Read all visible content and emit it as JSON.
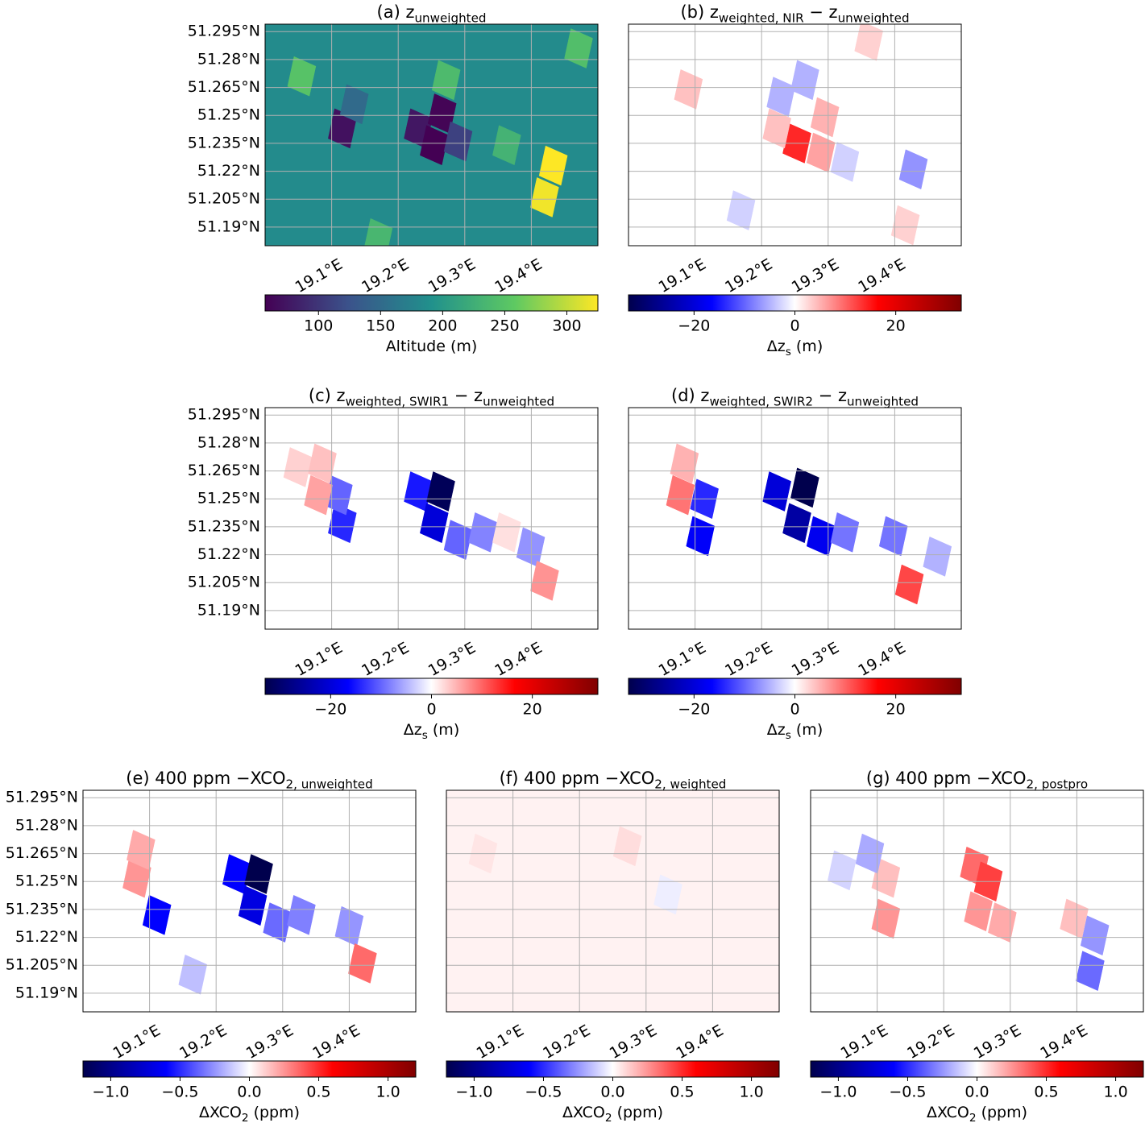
{
  "chart_data": [
    {
      "type": "heatmap",
      "title": [
        "(a) z",
        {
          "sub": "unweighted"
        }
      ],
      "colormap": "viridis",
      "clim": [
        57,
        325
      ],
      "cticks": [
        100,
        150,
        200,
        250,
        300
      ],
      "colorbar_label": [
        "Altitude (m)"
      ],
      "xlim": [
        19.0,
        19.5
      ],
      "ylim": [
        51.18,
        51.299
      ],
      "grid": true,
      "xticks": [
        {
          "value": 19.1,
          "label": "19.1°E"
        },
        {
          "value": 19.2,
          "label": "19.2°E"
        },
        {
          "value": 19.3,
          "label": "19.3°E"
        },
        {
          "value": 19.4,
          "label": "19.4°E"
        }
      ],
      "yticks": [
        {
          "value": 51.19,
          "label": "51.19°N"
        },
        {
          "value": 51.205,
          "label": "51.205°N"
        },
        {
          "value": 51.22,
          "label": "51.22°N"
        },
        {
          "value": 51.235,
          "label": "51.235°N"
        },
        {
          "value": 51.25,
          "label": "51.25°N"
        },
        {
          "value": 51.265,
          "label": "51.265°N"
        },
        {
          "value": 51.28,
          "label": "51.28°N"
        },
        {
          "value": 51.295,
          "label": "51.295°N"
        }
      ],
      "background": 185,
      "cells": [
        {
          "lon": 19.116,
          "lat": 51.243,
          "value": 70
        },
        {
          "lon": 19.23,
          "lat": 51.243,
          "value": 75
        },
        {
          "lon": 19.266,
          "lat": 51.251,
          "value": 60
        },
        {
          "lon": 19.254,
          "lat": 51.234,
          "value": 55
        },
        {
          "lon": 19.29,
          "lat": 51.236,
          "value": 110
        },
        {
          "lon": 19.055,
          "lat": 51.271,
          "value": 250
        },
        {
          "lon": 19.433,
          "lat": 51.223,
          "value": 325
        },
        {
          "lon": 19.42,
          "lat": 51.206,
          "value": 320
        },
        {
          "lon": 19.272,
          "lat": 51.269,
          "value": 240
        },
        {
          "lon": 19.471,
          "lat": 51.286,
          "value": 245
        },
        {
          "lon": 19.17,
          "lat": 51.184,
          "value": 235
        },
        {
          "lon": 19.134,
          "lat": 51.256,
          "value": 150
        },
        {
          "lon": 19.363,
          "lat": 51.234,
          "value": 230
        }
      ]
    },
    {
      "type": "heatmap",
      "title": [
        "(b) z",
        {
          "sub": "weighted, NIR"
        },
        " − z",
        {
          "sub": "unweighted"
        }
      ],
      "colormap": "seismic",
      "clim": [
        -33,
        33
      ],
      "cticks": [
        {
          "value": -20,
          "label": "−20"
        },
        0,
        20
      ],
      "colorbar_label": [
        "Δz",
        {
          "sub": "s"
        },
        "  (m)"
      ],
      "xlim": [
        19.0,
        19.5
      ],
      "ylim": [
        51.18,
        51.299
      ],
      "grid": true,
      "xticks": [
        {
          "value": 19.1,
          "label": "19.1°E"
        },
        {
          "value": 19.2,
          "label": "19.2°E"
        },
        {
          "value": 19.3,
          "label": "19.3°E"
        },
        {
          "value": 19.4,
          "label": "19.4°E"
        }
      ],
      "yticks": [
        51.19,
        51.205,
        51.22,
        51.235,
        51.25,
        51.265,
        51.28,
        51.295
      ],
      "background": 0,
      "cells": [
        {
          "lon": 19.253,
          "lat": 51.235,
          "value": 14
        },
        {
          "lon": 19.289,
          "lat": 51.23,
          "value": 6
        },
        {
          "lon": 19.295,
          "lat": 51.249,
          "value": 5
        },
        {
          "lon": 19.223,
          "lat": 51.243,
          "value": 4
        },
        {
          "lon": 19.09,
          "lat": 51.264,
          "value": 4
        },
        {
          "lon": 19.229,
          "lat": 51.26,
          "value": -5
        },
        {
          "lon": 19.265,
          "lat": 51.269,
          "value": -5
        },
        {
          "lon": 19.428,
          "lat": 51.221,
          "value": -7
        },
        {
          "lon": 19.325,
          "lat": 51.225,
          "value": -3
        },
        {
          "lon": 19.169,
          "lat": 51.199,
          "value": -3
        },
        {
          "lon": 19.361,
          "lat": 51.29,
          "value": 3
        },
        {
          "lon": 19.416,
          "lat": 51.191,
          "value": 3
        }
      ]
    },
    {
      "type": "heatmap",
      "title": [
        "(c) z",
        {
          "sub": "weighted, SWIR1"
        },
        " − z",
        {
          "sub": "unweighted"
        }
      ],
      "colormap": "seismic",
      "clim": [
        -33,
        33
      ],
      "cticks": [
        {
          "value": -20,
          "label": "−20"
        },
        0,
        20
      ],
      "colorbar_label": [
        "Δz",
        {
          "sub": "s"
        },
        " (m)"
      ],
      "xlim": [
        19.0,
        19.5
      ],
      "ylim": [
        51.18,
        51.299
      ],
      "grid": true,
      "xticks": [
        {
          "value": 19.1,
          "label": "19.1°E"
        },
        {
          "value": 19.2,
          "label": "19.2°E"
        },
        {
          "value": 19.3,
          "label": "19.3°E"
        },
        {
          "value": 19.4,
          "label": "19.4°E"
        }
      ],
      "yticks": [
        {
          "value": 51.19,
          "label": "51.19°N"
        },
        {
          "value": 51.205,
          "label": "51.205°N"
        },
        {
          "value": 51.22,
          "label": "51.22°N"
        },
        {
          "value": 51.235,
          "label": "51.235°N"
        },
        {
          "value": 51.25,
          "label": "51.25°N"
        },
        {
          "value": 51.265,
          "label": "51.265°N"
        },
        {
          "value": 51.28,
          "label": "51.28°N"
        },
        {
          "value": 51.295,
          "label": "51.295°N"
        }
      ],
      "background": 0,
      "cells": [
        {
          "lon": 19.23,
          "lat": 51.254,
          "value": -15
        },
        {
          "lon": 19.264,
          "lat": 51.254,
          "value": -32
        },
        {
          "lon": 19.254,
          "lat": 51.237,
          "value": -20
        },
        {
          "lon": 19.116,
          "lat": 51.237,
          "value": -14
        },
        {
          "lon": 19.11,
          "lat": 51.252,
          "value": -10
        },
        {
          "lon": 19.08,
          "lat": 51.252,
          "value": 6
        },
        {
          "lon": 19.049,
          "lat": 51.267,
          "value": 3
        },
        {
          "lon": 19.086,
          "lat": 51.269,
          "value": 4
        },
        {
          "lon": 19.29,
          "lat": 51.228,
          "value": -10
        },
        {
          "lon": 19.327,
          "lat": 51.232,
          "value": -8
        },
        {
          "lon": 19.399,
          "lat": 51.224,
          "value": -7
        },
        {
          "lon": 19.42,
          "lat": 51.206,
          "value": 7
        },
        {
          "lon": 19.363,
          "lat": 51.232,
          "value": 2
        }
      ]
    },
    {
      "type": "heatmap",
      "title": [
        "(d) z",
        {
          "sub": "weighted, SWIR2"
        },
        " − z",
        {
          "sub": "unweighted"
        }
      ],
      "colormap": "seismic",
      "clim": [
        -33,
        33
      ],
      "cticks": [
        {
          "value": -20,
          "label": "−20"
        },
        0,
        20
      ],
      "colorbar_label": [
        "Δz",
        {
          "sub": "s"
        },
        " (m)"
      ],
      "xlim": [
        19.0,
        19.5
      ],
      "ylim": [
        51.18,
        51.299
      ],
      "grid": true,
      "xticks": [
        {
          "value": 19.1,
          "label": "19.1°E"
        },
        {
          "value": 19.2,
          "label": "19.2°E"
        },
        {
          "value": 19.3,
          "label": "19.3°E"
        },
        {
          "value": 19.4,
          "label": "19.4°E"
        }
      ],
      "yticks": [
        51.19,
        51.205,
        51.22,
        51.235,
        51.25,
        51.265,
        51.28,
        51.295
      ],
      "background": 0,
      "cells": [
        {
          "lon": 19.223,
          "lat": 51.254,
          "value": -20
        },
        {
          "lon": 19.265,
          "lat": 51.256,
          "value": -33
        },
        {
          "lon": 19.253,
          "lat": 51.237,
          "value": -25
        },
        {
          "lon": 19.289,
          "lat": 51.23,
          "value": -18
        },
        {
          "lon": 19.325,
          "lat": 51.232,
          "value": -9
        },
        {
          "lon": 19.114,
          "lat": 51.25,
          "value": -14
        },
        {
          "lon": 19.108,
          "lat": 51.23,
          "value": -17
        },
        {
          "lon": 19.078,
          "lat": 51.252,
          "value": 9
        },
        {
          "lon": 19.084,
          "lat": 51.269,
          "value": 5
        },
        {
          "lon": 19.398,
          "lat": 51.23,
          "value": -9
        },
        {
          "lon": 19.422,
          "lat": 51.204,
          "value": 12
        },
        {
          "lon": 19.464,
          "lat": 51.219,
          "value": -5
        }
      ]
    },
    {
      "type": "heatmap",
      "title": [
        "(e) 400 ppm −XCO",
        {
          "sub": "2, unweighted"
        }
      ],
      "colormap": "seismic",
      "clim": [
        -1.2,
        1.2
      ],
      "cticks": [
        {
          "value": -1,
          "label": "−1.0"
        },
        {
          "value": -0.5,
          "label": "−0.5"
        },
        {
          "value": 0,
          "label": "0.0"
        },
        0.5,
        {
          "value": 1,
          "label": "1.0"
        }
      ],
      "colorbar_label": [
        "ΔXCO",
        {
          "sub": "2"
        },
        " (ppm)"
      ],
      "xlim": [
        19.0,
        19.5
      ],
      "ylim": [
        51.18,
        51.299
      ],
      "grid": true,
      "xticks": [
        {
          "value": 19.1,
          "label": "19.1°E"
        },
        {
          "value": 19.2,
          "label": "19.2°E"
        },
        {
          "value": 19.3,
          "label": "19.3°E"
        },
        {
          "value": 19.4,
          "label": "19.4°E"
        }
      ],
      "yticks": [
        {
          "value": 51.19,
          "label": "51.19°N"
        },
        {
          "value": 51.205,
          "label": "51.205°N"
        },
        {
          "value": 51.22,
          "label": "51.22°N"
        },
        {
          "value": 51.235,
          "label": "51.235°N"
        },
        {
          "value": 51.25,
          "label": "51.25°N"
        },
        {
          "value": 51.265,
          "label": "51.265°N"
        },
        {
          "value": 51.28,
          "label": "51.28°N"
        },
        {
          "value": 51.295,
          "label": "51.295°N"
        }
      ],
      "background": 0,
      "cells": [
        {
          "lon": 19.231,
          "lat": 51.254,
          "value": -0.6
        },
        {
          "lon": 19.264,
          "lat": 51.254,
          "value": -1.2
        },
        {
          "lon": 19.255,
          "lat": 51.237,
          "value": -0.7
        },
        {
          "lon": 19.292,
          "lat": 51.228,
          "value": -0.35
        },
        {
          "lon": 19.111,
          "lat": 51.232,
          "value": -0.6
        },
        {
          "lon": 19.081,
          "lat": 51.252,
          "value": 0.25
        },
        {
          "lon": 19.087,
          "lat": 51.267,
          "value": 0.2
        },
        {
          "lon": 19.328,
          "lat": 51.232,
          "value": -0.3
        },
        {
          "lon": 19.4,
          "lat": 51.226,
          "value": -0.25
        },
        {
          "lon": 19.42,
          "lat": 51.206,
          "value": 0.35
        },
        {
          "lon": 19.165,
          "lat": 51.2,
          "value": -0.15
        }
      ]
    },
    {
      "type": "heatmap",
      "title": [
        "(f) 400 ppm −XCO",
        {
          "sub": "2, weighted"
        }
      ],
      "colormap": "seismic",
      "clim": [
        -1.2,
        1.2
      ],
      "cticks": [
        {
          "value": -1,
          "label": "−1.0"
        },
        {
          "value": -0.5,
          "label": "−0.5"
        },
        {
          "value": 0,
          "label": "0.0"
        },
        0.5,
        {
          "value": 1,
          "label": "1.0"
        }
      ],
      "colorbar_label": [
        "ΔXCO",
        {
          "sub": "2"
        },
        " (ppm)"
      ],
      "xlim": [
        19.0,
        19.5
      ],
      "ylim": [
        51.18,
        51.299
      ],
      "grid": true,
      "xticks": [
        {
          "value": 19.1,
          "label": "19.1°E"
        },
        {
          "value": 19.2,
          "label": "19.2°E"
        },
        {
          "value": 19.3,
          "label": "19.3°E"
        },
        {
          "value": 19.4,
          "label": "19.4°E"
        }
      ],
      "yticks": [
        51.19,
        51.205,
        51.22,
        51.235,
        51.25,
        51.265,
        51.28,
        51.295
      ],
      "background": 0.03,
      "cells": [
        {
          "lon": 19.272,
          "lat": 51.269,
          "value": 0.08
        },
        {
          "lon": 19.333,
          "lat": 51.243,
          "value": -0.04
        },
        {
          "lon": 19.055,
          "lat": 51.265,
          "value": 0.06
        }
      ]
    },
    {
      "type": "heatmap",
      "title": [
        "(g) 400 ppm −XCO",
        {
          "sub": "2, postpro"
        }
      ],
      "colormap": "seismic",
      "clim": [
        -1.2,
        1.2
      ],
      "cticks": [
        {
          "value": -1,
          "label": "−1.0"
        },
        {
          "value": -0.5,
          "label": "−0.5"
        },
        {
          "value": 0,
          "label": "0.0"
        },
        0.5,
        {
          "value": 1,
          "label": "1.0"
        }
      ],
      "colorbar_label": [
        "ΔXCO",
        {
          "sub": "2"
        },
        " (ppm)"
      ],
      "xlim": [
        19.0,
        19.5
      ],
      "ylim": [
        51.18,
        51.299
      ],
      "grid": true,
      "xticks": [
        {
          "value": 19.1,
          "label": "19.1°E"
        },
        {
          "value": 19.2,
          "label": "19.2°E"
        },
        {
          "value": 19.3,
          "label": "19.3°E"
        },
        {
          "value": 19.4,
          "label": "19.4°E"
        }
      ],
      "yticks": [
        51.19,
        51.205,
        51.22,
        51.235,
        51.25,
        51.265,
        51.28,
        51.295
      ],
      "background": 0,
      "cells": [
        {
          "lon": 19.246,
          "lat": 51.258,
          "value": 0.35
        },
        {
          "lon": 19.267,
          "lat": 51.25,
          "value": 0.45
        },
        {
          "lon": 19.252,
          "lat": 51.234,
          "value": 0.25
        },
        {
          "lon": 19.288,
          "lat": 51.228,
          "value": 0.2
        },
        {
          "lon": 19.113,
          "lat": 51.23,
          "value": 0.25
        },
        {
          "lon": 19.113,
          "lat": 51.252,
          "value": 0.15
        },
        {
          "lon": 19.089,
          "lat": 51.265,
          "value": -0.2
        },
        {
          "lon": 19.047,
          "lat": 51.256,
          "value": -0.1
        },
        {
          "lon": 19.427,
          "lat": 51.221,
          "value": -0.25
        },
        {
          "lon": 19.42,
          "lat": 51.202,
          "value": -0.35
        },
        {
          "lon": 19.396,
          "lat": 51.23,
          "value": 0.15
        }
      ]
    }
  ]
}
